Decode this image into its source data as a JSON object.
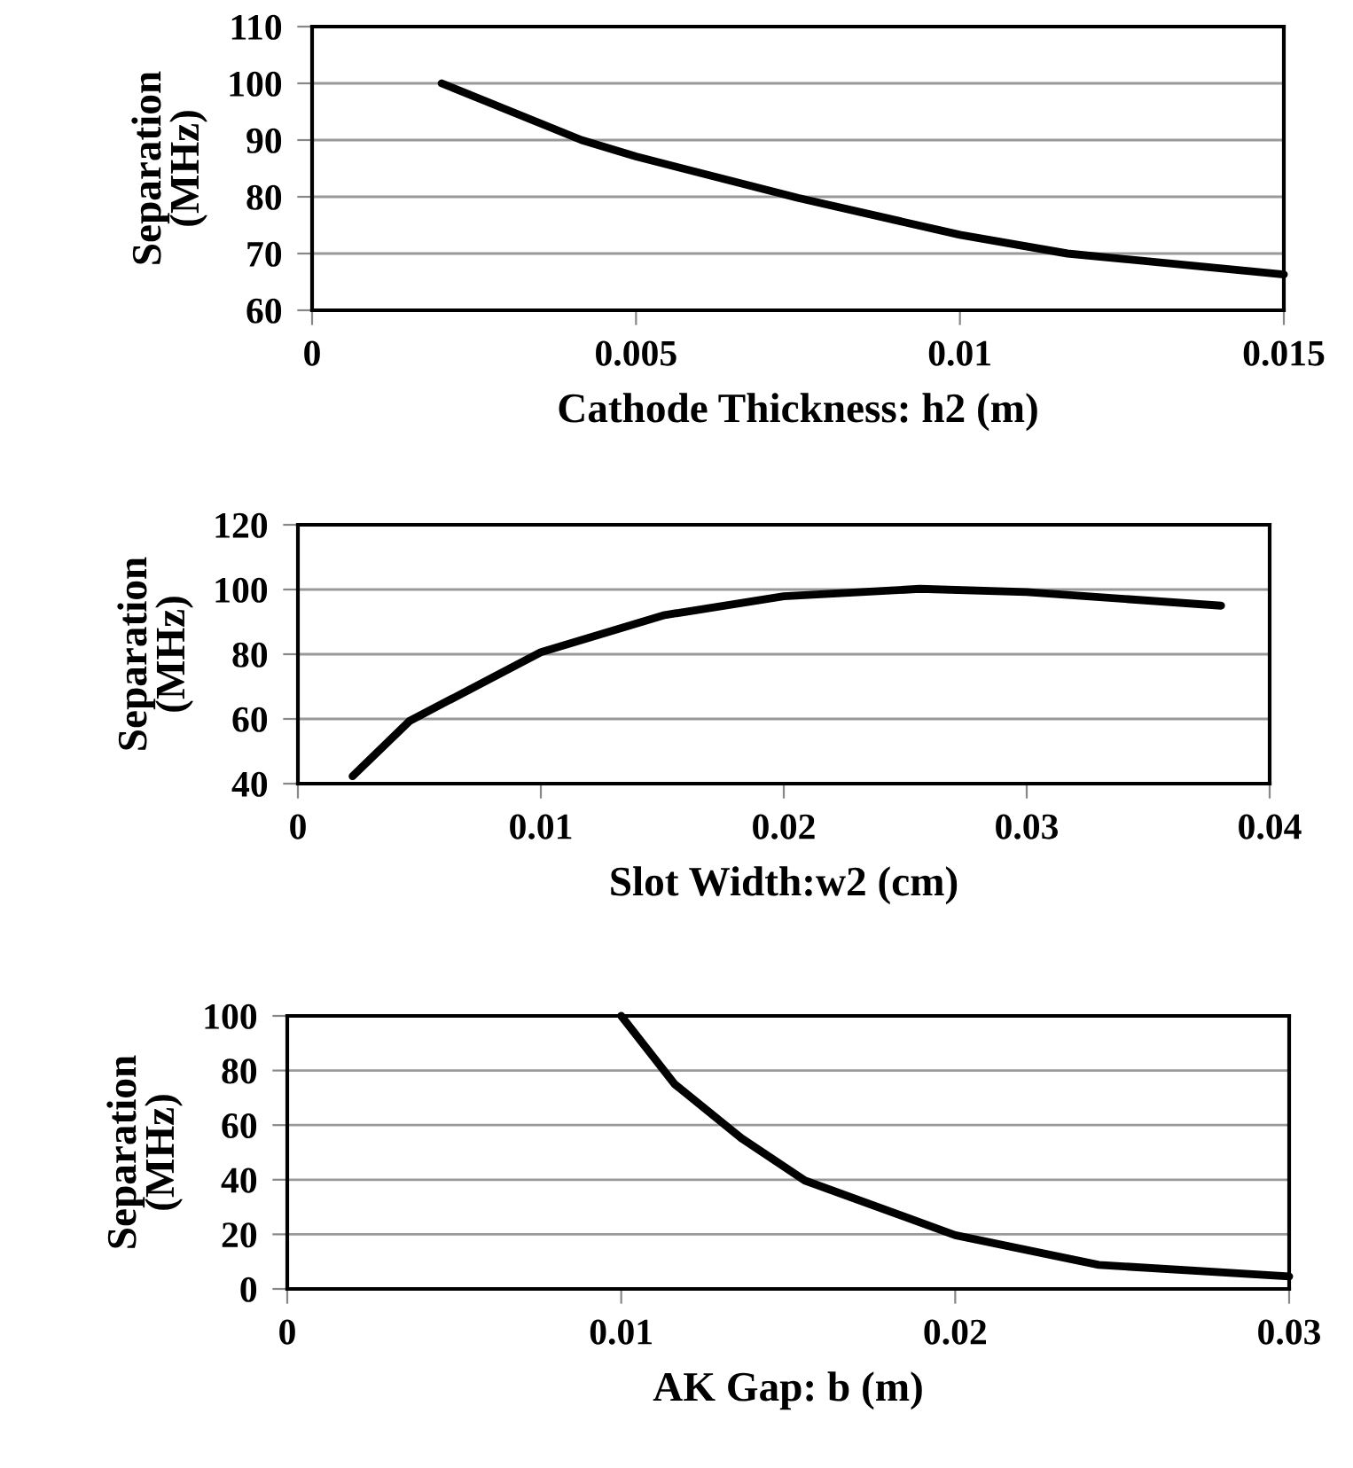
{
  "chart_data": [
    {
      "type": "line",
      "xlabel": "Cathode Thickness: h2 (m)",
      "ylabel": "Separation\n(MHz)",
      "xlim": [
        0,
        0.015
      ],
      "xticks": [
        0,
        0.005,
        0.01,
        0.015
      ],
      "ylim": [
        60,
        110
      ],
      "yticks": [
        60,
        70,
        80,
        90,
        100,
        110
      ],
      "grid": "y",
      "series": [
        {
          "color": "#000000",
          "x": [
            0.002,
            0.00416,
            0.005,
            0.0075,
            0.01,
            0.01166,
            0.015
          ],
          "values": [
            100,
            90,
            87.1,
            79.8,
            73.3,
            70,
            66.3
          ]
        }
      ]
    },
    {
      "type": "line",
      "xlabel": "Slot Width:w2 (cm)",
      "ylabel": "Separation\n(MHz)",
      "xlim": [
        0,
        0.04
      ],
      "xticks": [
        0,
        0.01,
        0.02,
        0.03,
        0.04
      ],
      "ylim": [
        40,
        120
      ],
      "yticks": [
        40,
        60,
        80,
        100,
        120
      ],
      "grid": "y",
      "series": [
        {
          "color": "#000000",
          "x": [
            0.00225,
            0.0046,
            0.01,
            0.0151,
            0.02,
            0.0256,
            0.03,
            0.038
          ],
          "values": [
            42.3,
            59.4,
            80.6,
            92.1,
            97.9,
            100.2,
            99.2,
            95
          ]
        }
      ]
    },
    {
      "type": "line",
      "xlabel": "AK Gap: b (m)",
      "ylabel": "Separation\n(MHz)",
      "xlim": [
        0,
        0.03
      ],
      "xticks": [
        0,
        0.01,
        0.02,
        0.03
      ],
      "ylim": [
        0,
        100
      ],
      "yticks": [
        0,
        20,
        40,
        60,
        80,
        100
      ],
      "grid": "y",
      "series": [
        {
          "color": "#000000",
          "x": [
            0.01,
            0.0116,
            0.0136,
            0.0155,
            0.02,
            0.0243,
            0.03
          ],
          "values": [
            100,
            75,
            55.2,
            39.7,
            19.7,
            8.8,
            4.6
          ]
        }
      ]
    }
  ]
}
